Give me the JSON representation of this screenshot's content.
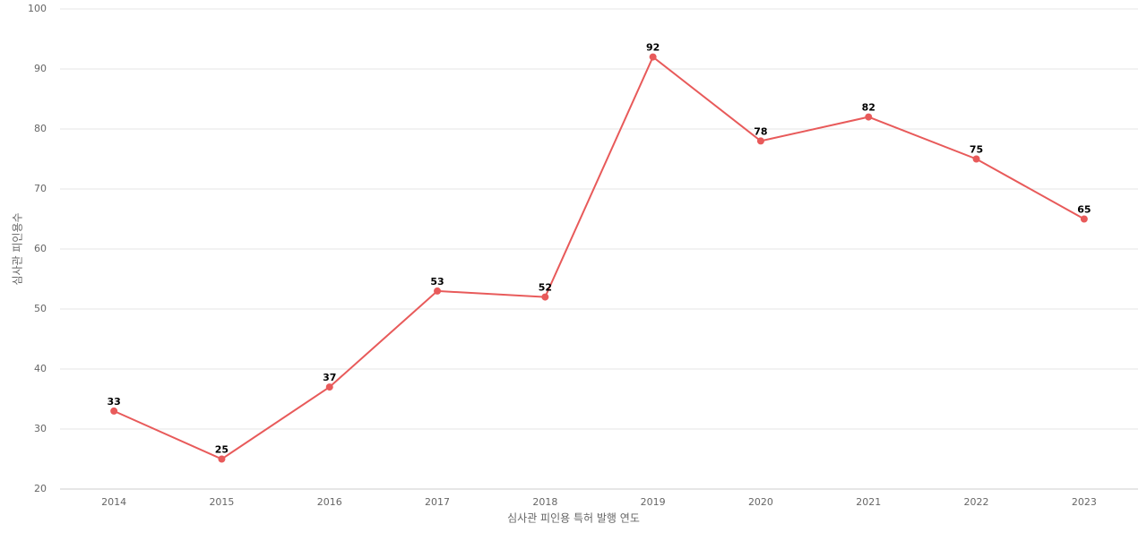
{
  "chart_data": {
    "type": "line",
    "x_label": "심사관 피인용 특허 발행 연도",
    "y_label": "심사관 피인용수",
    "categories": [
      "2014",
      "2015",
      "2016",
      "2017",
      "2018",
      "2019",
      "2020",
      "2021",
      "2022",
      "2023"
    ],
    "series": [
      {
        "name": "심사관 피인용수",
        "color": "#e85a5a",
        "values": [
          33,
          25,
          37,
          53,
          52,
          92,
          78,
          82,
          75,
          65
        ]
      }
    ],
    "ylim": [
      20,
      100
    ],
    "yticks": [
      20,
      30,
      40,
      50,
      60,
      70,
      80,
      90,
      100
    ],
    "grid": true,
    "data_labels": true
  }
}
